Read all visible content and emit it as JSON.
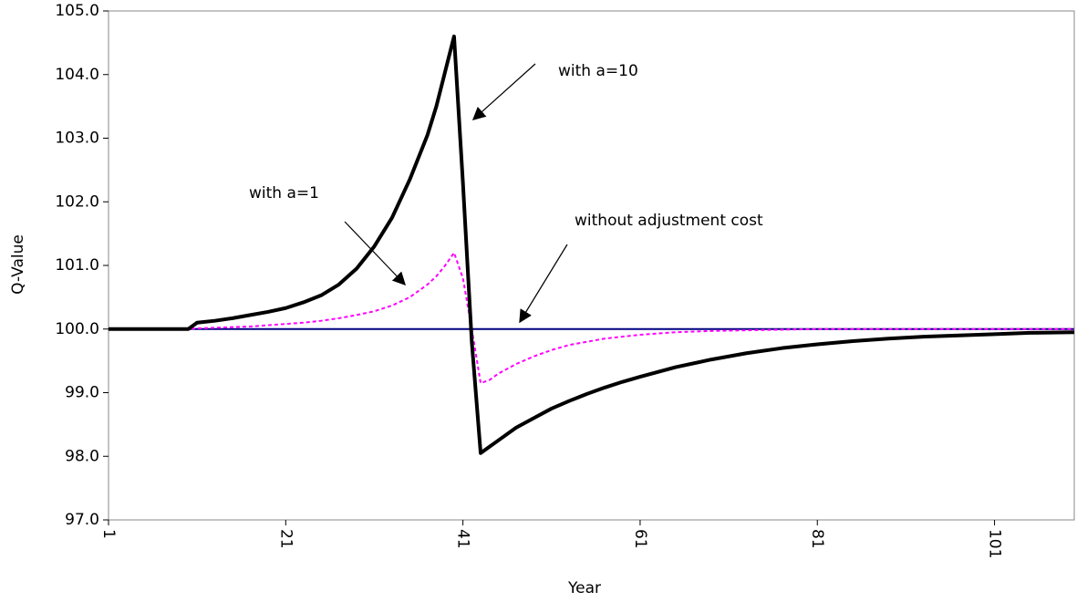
{
  "chart_data": {
    "type": "line",
    "x_label": "Year",
    "y_label": "Q-Value",
    "x": [
      1,
      5,
      9,
      10,
      11,
      13,
      15,
      17,
      19,
      21,
      23,
      25,
      27,
      29,
      31,
      33,
      35,
      37,
      38,
      39,
      40,
      41,
      42,
      43,
      44,
      45,
      47,
      49,
      51,
      53,
      55,
      57,
      59,
      61,
      65,
      69,
      73,
      77,
      81,
      85,
      89,
      93,
      97,
      101,
      105,
      110
    ],
    "series": [
      {
        "name": "with a=10",
        "color": "#000000",
        "dash": "solid",
        "width": 4,
        "values": [
          100,
          100,
          100,
          100,
          100.1,
          100.13,
          100.17,
          100.22,
          100.27,
          100.33,
          100.42,
          100.53,
          100.7,
          100.95,
          101.3,
          101.75,
          102.35,
          103.05,
          103.5,
          104.05,
          104.6,
          102.3,
          99.8,
          98.05,
          98.15,
          98.25,
          98.45,
          98.6,
          98.75,
          98.87,
          98.98,
          99.08,
          99.17,
          99.25,
          99.4,
          99.52,
          99.62,
          99.7,
          99.76,
          99.81,
          99.85,
          99.88,
          99.9,
          99.92,
          99.94,
          99.95
        ]
      },
      {
        "name": "with a=1",
        "color": "#ff00ff",
        "dash": "dashed",
        "width": 2,
        "values": [
          100,
          100,
          100,
          100,
          100.01,
          100.02,
          100.03,
          100.04,
          100.06,
          100.08,
          100.1,
          100.13,
          100.17,
          100.22,
          100.28,
          100.37,
          100.5,
          100.7,
          100.83,
          101.0,
          101.2,
          100.8,
          100.0,
          99.15,
          99.2,
          99.3,
          99.45,
          99.57,
          99.67,
          99.75,
          99.8,
          99.85,
          99.88,
          99.91,
          99.95,
          99.97,
          99.98,
          99.99,
          100,
          100,
          100,
          100,
          100,
          100,
          100,
          100
        ]
      },
      {
        "name": "without adjustment cost",
        "color": "#000080",
        "dash": "solid",
        "width": 2,
        "values": [
          100,
          100,
          100,
          100,
          100,
          100,
          100,
          100,
          100,
          100,
          100,
          100,
          100,
          100,
          100,
          100,
          100,
          100,
          100,
          100,
          100,
          100,
          100,
          100,
          100,
          100,
          100,
          100,
          100,
          100,
          100,
          100,
          100,
          100,
          100,
          100,
          100,
          100,
          100,
          100,
          100,
          100,
          100,
          100,
          100,
          100
        ]
      }
    ],
    "annotations": [
      "with a=10",
      "with a=1",
      "without adjustment cost"
    ],
    "xlim": [
      1,
      110
    ],
    "xticks": [
      1,
      21,
      41,
      61,
      81,
      101
    ],
    "ylim": [
      97,
      105
    ],
    "yticks": [
      {
        "value": 97,
        "label": "97.0"
      },
      {
        "value": 98,
        "label": "98.0"
      },
      {
        "value": 99,
        "label": "99.0"
      },
      {
        "value": 100,
        "label": "100.0"
      },
      {
        "value": 101,
        "label": "101.0"
      },
      {
        "value": 102,
        "label": "102.0"
      },
      {
        "value": 103,
        "label": "103.0"
      },
      {
        "value": 104,
        "label": "104.0"
      },
      {
        "value": 105,
        "label": "105.0"
      }
    ],
    "grid": false,
    "legend": false
  }
}
